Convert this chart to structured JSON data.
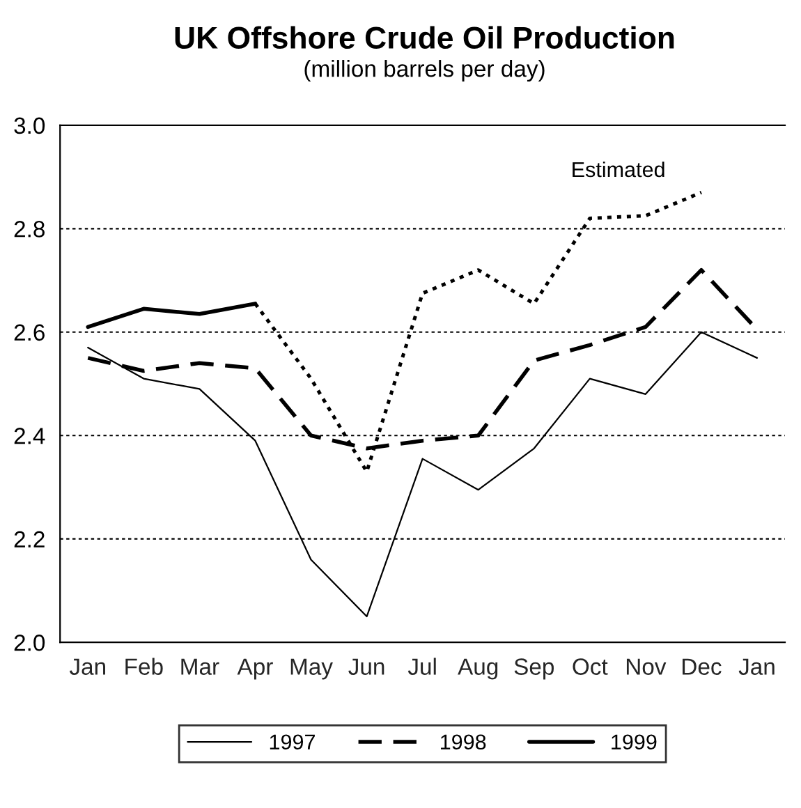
{
  "chart_data": {
    "type": "line",
    "title": "UK Offshore Crude Oil Production",
    "subtitle": "(million barrels per day)",
    "categories": [
      "Jan",
      "Feb",
      "Mar",
      "Apr",
      "May",
      "Jun",
      "Jul",
      "Aug",
      "Sep",
      "Oct",
      "Nov",
      "Dec",
      "Jan"
    ],
    "series": [
      {
        "name": "1997",
        "color": "#000000",
        "line_style": "solid",
        "values": [
          2.57,
          2.51,
          2.49,
          2.39,
          2.16,
          2.05,
          2.355,
          2.295,
          2.375,
          2.51,
          2.48,
          2.6,
          2.55
        ]
      },
      {
        "name": "1998",
        "color": "#000000",
        "line_style": "dashed",
        "values": [
          2.55,
          2.525,
          2.54,
          2.53,
          2.4,
          2.375,
          2.39,
          2.4,
          2.545,
          2.575,
          2.61,
          2.72,
          2.605
        ]
      },
      {
        "name": "1999",
        "color": "#000000",
        "line_style": "solid",
        "values": [
          2.61,
          2.645,
          2.635,
          2.655,
          null,
          null,
          null,
          null,
          null,
          null,
          null,
          null,
          null
        ]
      },
      {
        "color": "#000000",
        "line_style": "dotted",
        "values": [
          null,
          null,
          null,
          2.655,
          2.51,
          2.33,
          2.675,
          2.72,
          2.655,
          2.82,
          2.825,
          2.87,
          null
        ]
      }
    ],
    "annotations": [
      "Estimated"
    ],
    "ylim": [
      2.0,
      3.0
    ],
    "yticks": [
      {
        "value": 2.0,
        "label": "2.0"
      },
      {
        "value": 2.2,
        "label": "2.2"
      },
      {
        "value": 2.4,
        "label": "2.4"
      },
      {
        "value": 2.6,
        "label": "2.6"
      },
      {
        "value": 2.8,
        "label": "2.8"
      },
      {
        "value": 3.0,
        "label": "3.0"
      }
    ],
    "grid": "y",
    "legend": "bottom",
    "marker": "none"
  }
}
